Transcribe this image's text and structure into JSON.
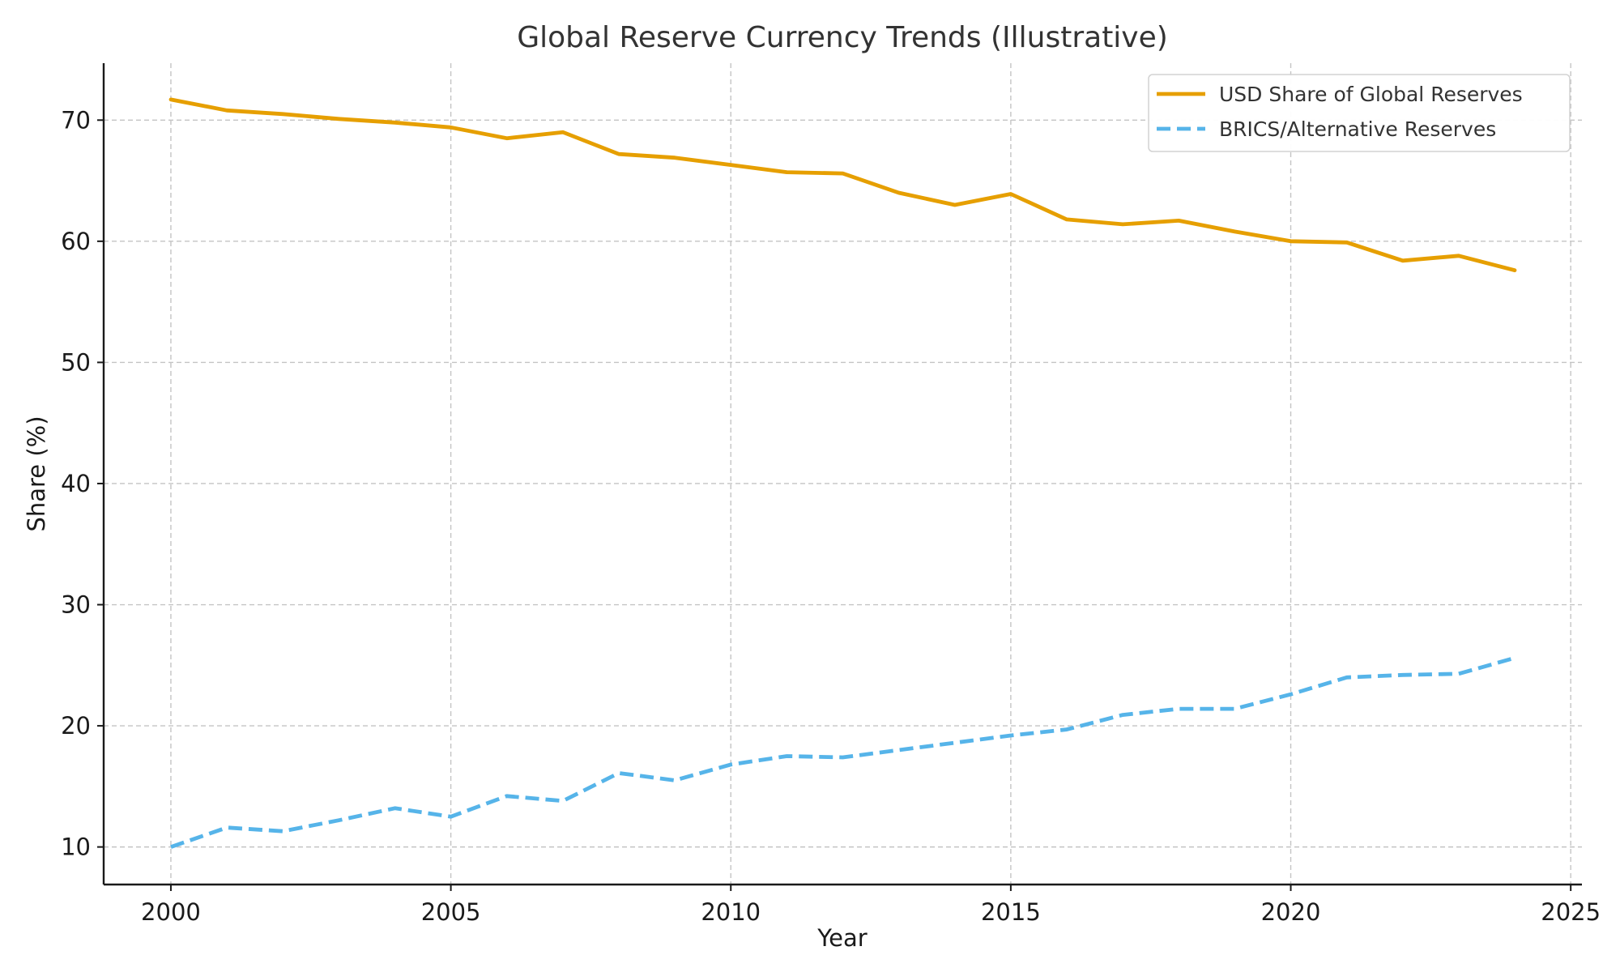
{
  "chart_data": {
    "type": "line",
    "title": "Global Reserve Currency Trends (Illustrative)",
    "xlabel": "Year",
    "ylabel": "Share (%)",
    "xlim": [
      1998.8,
      2025.2
    ],
    "ylim": [
      6.9,
      74.7
    ],
    "xticks": [
      2000,
      2005,
      2010,
      2015,
      2020,
      2025
    ],
    "yticks": [
      10,
      20,
      30,
      40,
      50,
      60,
      70
    ],
    "grid": true,
    "legend_position": "top-right",
    "x": [
      2000,
      2001,
      2002,
      2003,
      2004,
      2005,
      2006,
      2007,
      2008,
      2009,
      2010,
      2011,
      2012,
      2013,
      2014,
      2015,
      2016,
      2017,
      2018,
      2019,
      2020,
      2021,
      2022,
      2023,
      2024
    ],
    "series": [
      {
        "name": "USD Share of Global Reserves",
        "color": "#e69f00",
        "style": "solid",
        "values": [
          71.7,
          70.8,
          70.5,
          70.1,
          69.8,
          69.4,
          68.5,
          69.0,
          67.2,
          66.9,
          66.3,
          65.7,
          65.6,
          64.0,
          63.0,
          63.9,
          61.8,
          61.4,
          61.7,
          60.8,
          60.0,
          59.9,
          58.4,
          58.8,
          57.6
        ]
      },
      {
        "name": "BRICS/Alternative Reserves",
        "color": "#56b4e9",
        "style": "dashed",
        "values": [
          10.0,
          11.6,
          11.3,
          12.2,
          13.2,
          12.5,
          14.2,
          13.8,
          16.1,
          15.5,
          16.8,
          17.5,
          17.4,
          18.0,
          18.6,
          19.2,
          19.7,
          20.9,
          21.4,
          21.4,
          22.6,
          24.0,
          24.2,
          24.3,
          25.6
        ]
      }
    ]
  }
}
